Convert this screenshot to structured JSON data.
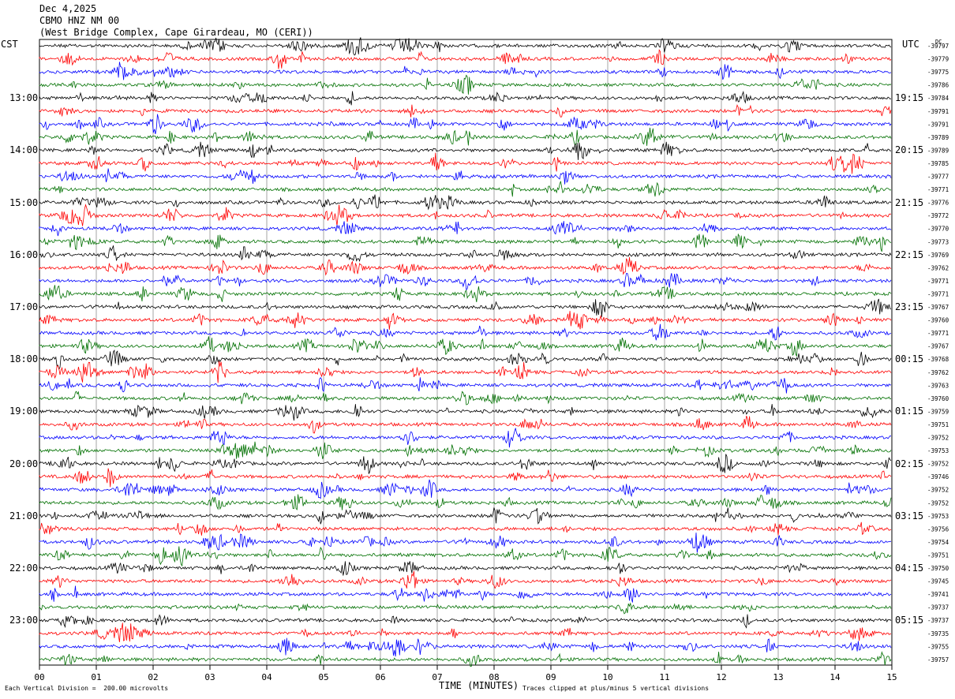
{
  "header": {
    "date": "Dec 4,2025",
    "station": "CBMO HNZ NM 00",
    "location": "(West Bridge Complex, Cape Girardeau, MO (CERI))"
  },
  "left_tz": "CST",
  "right_tz": "UTC",
  "dc_label": "DC",
  "footer": {
    "scale_note": "Each Vertical Division =  200.00 microvolts",
    "clip_note": "Traces clipped at plus/minus 5 vertical divisions"
  },
  "colors": {
    "trace_cycle": [
      "#000000",
      "#ff0000",
      "#0000ff",
      "#007000"
    ],
    "grid": "#808080"
  },
  "chart_data": {
    "type": "line",
    "title": "Dec 4,2025 CBMO HNZ NM 00 (West Bridge Complex, Cape Girardeau, MO (CERI))",
    "xlabel": "TIME (MINUTES)",
    "xlim": [
      0,
      15
    ],
    "x_ticks": [
      "00",
      "01",
      "02",
      "03",
      "04",
      "05",
      "06",
      "07",
      "08",
      "09",
      "10",
      "11",
      "12",
      "13",
      "14",
      "15"
    ],
    "trace_minutes": 15,
    "scale_microvolts_per_division": 200.0,
    "clip_divisions": 5,
    "left_time_labels": [
      "13:00",
      "14:00",
      "15:00",
      "16:00",
      "17:00",
      "18:00",
      "19:00",
      "20:00",
      "21:00",
      "22:00",
      "23:00"
    ],
    "right_time_labels": [
      "19:15",
      "20:15",
      "21:15",
      "22:15",
      "23:15",
      "00:15",
      "01:15",
      "02:15",
      "03:15",
      "04:15",
      "05:15"
    ],
    "hour_label_trace_indices": [
      4,
      8,
      12,
      16,
      20,
      24,
      28,
      32,
      36,
      40,
      44
    ],
    "dc_offsets": [
      -39797,
      -39779,
      -39775,
      -39786,
      -39784,
      -39791,
      -39791,
      -39789,
      -39789,
      -39785,
      -39777,
      -39771,
      -39776,
      -39772,
      -39770,
      -39773,
      -39769,
      -39762,
      -39771,
      -39771,
      -39767,
      -39760,
      -39771,
      -39767,
      -39768,
      -39762,
      -39763,
      -39760,
      -39759,
      -39751,
      -39752,
      -39753,
      -39752,
      -39746,
      -39752,
      -39752,
      -39753,
      -39756,
      -39754,
      -39751,
      -39750,
      -39745,
      -39741,
      -39737,
      -39737,
      -39735,
      -39755,
      -39757
    ]
  }
}
